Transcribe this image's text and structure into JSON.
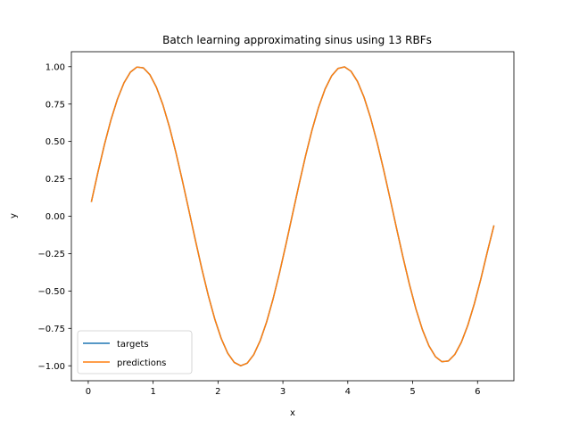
{
  "chart_data": {
    "type": "line",
    "title": "Batch learning approximating sinus using 13 RBFs",
    "xlabel": "x",
    "ylabel": "y",
    "xlim": [
      -0.26,
      6.56
    ],
    "ylim": [
      -1.1,
      1.1
    ],
    "xticks": [
      0,
      1,
      2,
      3,
      4,
      5,
      6
    ],
    "yticks": [
      -1.0,
      -0.75,
      -0.5,
      -0.25,
      0.0,
      0.25,
      0.5,
      0.75,
      1.0
    ],
    "xtick_labels": [
      "0",
      "1",
      "2",
      "3",
      "4",
      "5",
      "6"
    ],
    "ytick_labels": [
      "−1.00",
      "−0.75",
      "−0.50",
      "−0.25",
      "0.00",
      "0.25",
      "0.50",
      "0.75",
      "1.00"
    ],
    "x": [
      0.05,
      0.15,
      0.25,
      0.35,
      0.45,
      0.55,
      0.65,
      0.75,
      0.85,
      0.95,
      1.05,
      1.15,
      1.25,
      1.35,
      1.45,
      1.55,
      1.65,
      1.75,
      1.85,
      1.95,
      2.05,
      2.15,
      2.25,
      2.35,
      2.45,
      2.55,
      2.65,
      2.75,
      2.85,
      2.95,
      3.05,
      3.15,
      3.25,
      3.35,
      3.45,
      3.55,
      3.65,
      3.75,
      3.85,
      3.95,
      4.05,
      4.15,
      4.25,
      4.35,
      4.45,
      4.55,
      4.65,
      4.75,
      4.85,
      4.95,
      5.05,
      5.15,
      5.25,
      5.35,
      5.45,
      5.55,
      5.65,
      5.75,
      5.85,
      5.95,
      6.05,
      6.15,
      6.25
    ],
    "series": [
      {
        "name": "targets",
        "color": "#1f77b4",
        "values": [
          0.0998,
          0.2955,
          0.4794,
          0.6442,
          0.7833,
          0.8912,
          0.9636,
          0.9975,
          0.9917,
          0.9463,
          0.8632,
          0.7457,
          0.5985,
          0.4274,
          0.2392,
          0.0416,
          -0.1577,
          -0.3508,
          -0.5298,
          -0.6878,
          -0.8183,
          -0.9162,
          -0.9775,
          -0.9998,
          -0.9825,
          -0.9258,
          -0.8322,
          -0.7055,
          -0.5507,
          -0.3742,
          -0.1822,
          0.0168,
          0.2151,
          0.4048,
          0.5784,
          0.729,
          0.8504,
          0.938,
          0.9882,
          0.9986,
          0.9692,
          0.9006,
          0.7959,
          0.6594,
          0.4967,
          0.3146,
          0.1206,
          -0.0779,
          -0.2725,
          -0.4555,
          -0.6196,
          -0.7582,
          -0.8659,
          -0.9384,
          -0.9729,
          -0.968,
          -0.9241,
          -0.8431,
          -0.7287,
          -0.5858,
          -0.4205,
          -0.2398,
          -0.066
        ]
      },
      {
        "name": "predictions",
        "color": "#ff7f0e",
        "values": [
          0.0998,
          0.2955,
          0.4794,
          0.6442,
          0.7833,
          0.8912,
          0.9636,
          0.9975,
          0.9917,
          0.9463,
          0.8632,
          0.7457,
          0.5985,
          0.4274,
          0.2392,
          0.0416,
          -0.1577,
          -0.3508,
          -0.5298,
          -0.6878,
          -0.8183,
          -0.9162,
          -0.9775,
          -0.9998,
          -0.9825,
          -0.9258,
          -0.8322,
          -0.7055,
          -0.5507,
          -0.3742,
          -0.1822,
          0.0168,
          0.2151,
          0.4048,
          0.5784,
          0.729,
          0.8504,
          0.938,
          0.9882,
          0.9986,
          0.9692,
          0.9006,
          0.7959,
          0.6594,
          0.4967,
          0.3146,
          0.1206,
          -0.0779,
          -0.2725,
          -0.4555,
          -0.6196,
          -0.7582,
          -0.8659,
          -0.9384,
          -0.9729,
          -0.968,
          -0.9241,
          -0.8431,
          -0.7287,
          -0.5858,
          -0.4205,
          -0.2398,
          -0.066
        ]
      }
    ],
    "grid": false,
    "legend": "lower-left"
  }
}
